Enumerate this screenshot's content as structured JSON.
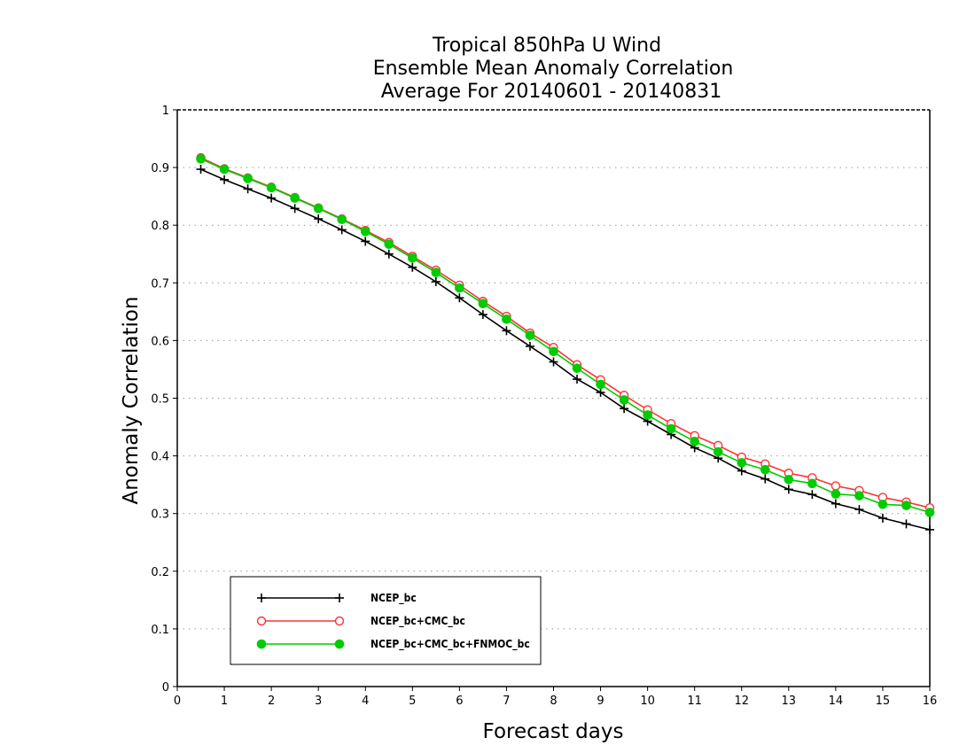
{
  "chart_data": {
    "type": "line",
    "title": [
      "Tropical 850hPa U Wind",
      "Ensemble Mean Anomaly Correlation",
      "Average For 20140601 - 20140831"
    ],
    "xlabel": "Forecast days",
    "ylabel": "Anomaly Correlation",
    "xlim": [
      0,
      16
    ],
    "ylim": [
      0,
      1
    ],
    "xticks": [
      0,
      1,
      2,
      3,
      4,
      5,
      6,
      7,
      8,
      9,
      10,
      11,
      12,
      13,
      14,
      15,
      16
    ],
    "xtick_labels": [
      "0",
      "1",
      "2",
      "3",
      "4",
      "5",
      "6",
      "7",
      "8",
      "9",
      "10",
      "11",
      "12",
      "13",
      "14",
      "15",
      "16"
    ],
    "yticks": [
      0,
      0.1,
      0.2,
      0.3,
      0.4,
      0.5,
      0.6,
      0.7,
      0.8,
      0.9,
      1
    ],
    "ytick_labels": [
      "0",
      "0.1",
      "0.2",
      "0.3",
      "0.4",
      "0.5",
      "0.6",
      "0.7",
      "0.8",
      "0.9",
      "1"
    ],
    "grid": true,
    "legend_position": "bottom-left",
    "x": [
      0.5,
      1,
      1.5,
      2,
      2.5,
      3,
      3.5,
      4,
      4.5,
      5,
      5.5,
      6,
      6.5,
      7,
      7.5,
      8,
      8.5,
      9,
      9.5,
      10,
      10.5,
      11,
      11.5,
      12,
      12.5,
      13,
      13.5,
      14,
      14.5,
      15,
      15.5,
      16
    ],
    "series": [
      {
        "name": "NCEP_bc",
        "color": "#000000",
        "marker": "plus",
        "values": [
          0.897,
          0.879,
          0.863,
          0.847,
          0.829,
          0.811,
          0.792,
          0.772,
          0.75,
          0.727,
          0.702,
          0.674,
          0.645,
          0.617,
          0.59,
          0.563,
          0.533,
          0.51,
          0.482,
          0.46,
          0.437,
          0.414,
          0.396,
          0.374,
          0.36,
          0.342,
          0.333,
          0.317,
          0.307,
          0.292,
          0.282,
          0.272
        ]
      },
      {
        "name": "NCEP_bc+CMC_bc",
        "color": "#ff3333",
        "marker": "open-circle",
        "values": [
          0.917,
          0.898,
          0.882,
          0.866,
          0.848,
          0.83,
          0.811,
          0.791,
          0.77,
          0.746,
          0.722,
          0.696,
          0.668,
          0.642,
          0.613,
          0.588,
          0.558,
          0.532,
          0.505,
          0.48,
          0.456,
          0.435,
          0.418,
          0.398,
          0.386,
          0.37,
          0.362,
          0.348,
          0.34,
          0.328,
          0.32,
          0.31
        ]
      },
      {
        "name": "NCEP_bc+CMC_bc+FNMOC_bc",
        "color": "#00cc00",
        "marker": "filled-circle",
        "values": [
          0.915,
          0.897,
          0.881,
          0.865,
          0.847,
          0.829,
          0.81,
          0.789,
          0.767,
          0.743,
          0.718,
          0.691,
          0.664,
          0.637,
          0.609,
          0.581,
          0.552,
          0.524,
          0.497,
          0.471,
          0.447,
          0.425,
          0.407,
          0.388,
          0.376,
          0.359,
          0.352,
          0.334,
          0.331,
          0.316,
          0.314,
          0.302
        ]
      }
    ]
  }
}
